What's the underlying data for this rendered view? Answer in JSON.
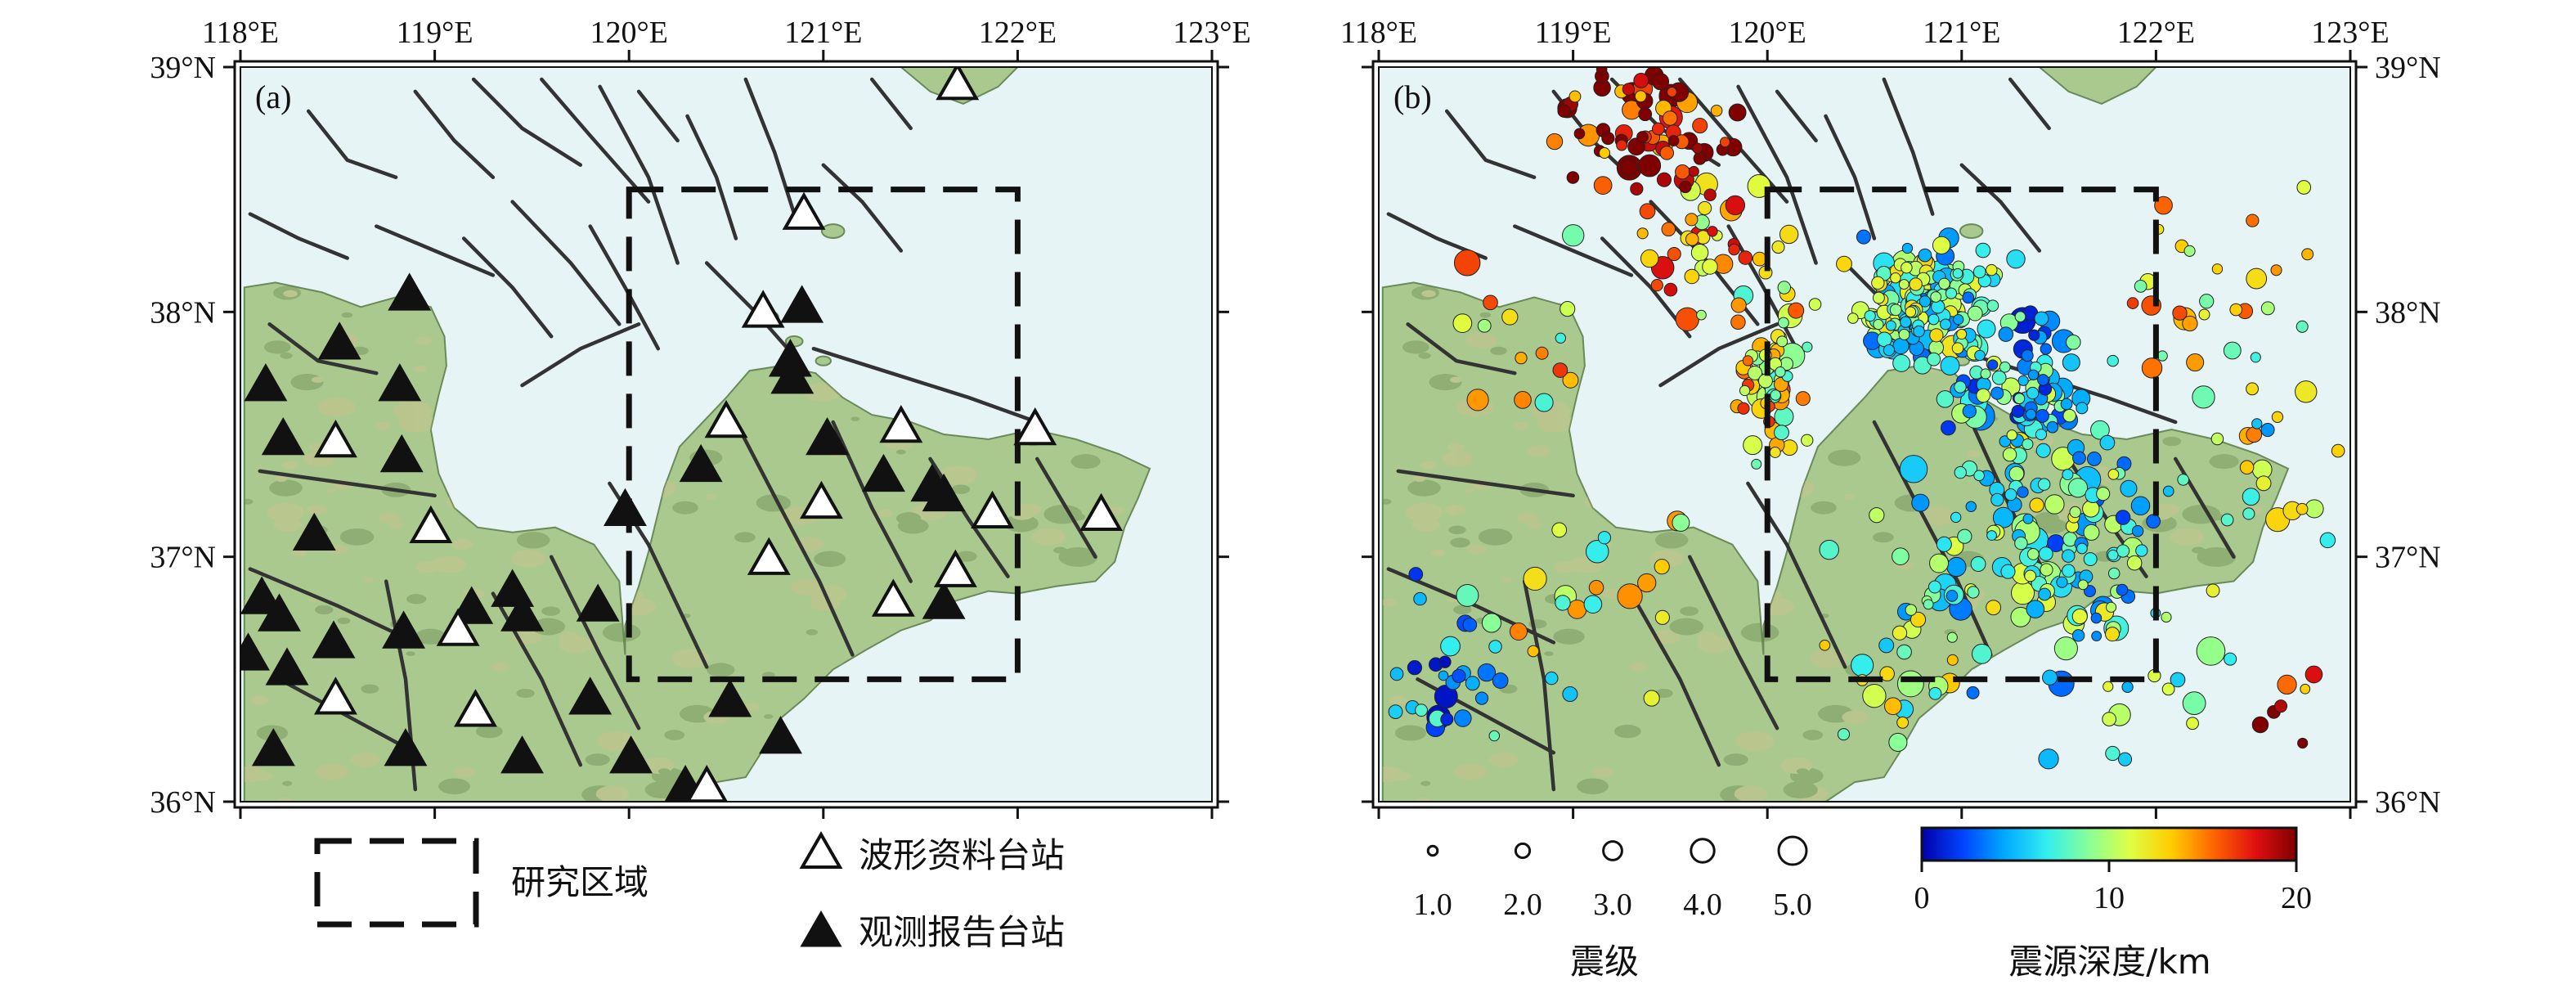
{
  "figure": {
    "panels": [
      {
        "label": "(a)"
      },
      {
        "label": "(b)"
      }
    ],
    "lon_ticks": [
      "118°E",
      "119°E",
      "120°E",
      "121°E",
      "122°E",
      "123°E"
    ],
    "lat_ticks": [
      "39°N",
      "38°N",
      "37°N",
      "36°N"
    ],
    "extent": {
      "lon": [
        118,
        123
      ],
      "lat": [
        36,
        39
      ]
    },
    "study_area": {
      "lon": [
        120,
        122
      ],
      "lat": [
        36.5,
        38.5
      ]
    },
    "legend_a": {
      "study_area_label": "研究区域",
      "waveform_station_label": "波形资料台站",
      "report_station_label": "观测报告台站"
    },
    "legend_b": {
      "magnitude_title": "震级",
      "magnitudes": [
        "1.0",
        "2.0",
        "3.0",
        "4.0",
        "5.0"
      ],
      "depth_title": "震源深度/km",
      "depth_ticks": [
        "0",
        "10",
        "20"
      ],
      "depth_colors": [
        "#0000aa",
        "#0044ff",
        "#00aaff",
        "#33eeee",
        "#88ff99",
        "#ddff44",
        "#ffcc00",
        "#ff6600",
        "#e01010",
        "#800000"
      ]
    },
    "colors": {
      "land": "#a9c98f",
      "sea": "#e6f4f6",
      "fault": "#333333"
    }
  },
  "stations": {
    "waveform": [
      [
        121.69,
        38.93
      ],
      [
        120.9,
        38.4
      ],
      [
        120.69,
        38.0
      ],
      [
        120.5,
        37.55
      ],
      [
        121.4,
        37.53
      ],
      [
        122.09,
        37.52
      ],
      [
        118.49,
        37.47
      ],
      [
        118.98,
        37.12
      ],
      [
        120.99,
        37.22
      ],
      [
        121.87,
        37.18
      ],
      [
        122.43,
        37.17
      ],
      [
        120.72,
        36.99
      ],
      [
        121.68,
        36.94
      ],
      [
        121.36,
        36.82
      ],
      [
        119.12,
        36.7
      ],
      [
        118.49,
        36.42
      ],
      [
        119.21,
        36.37
      ],
      [
        120.4,
        36.06
      ]
    ],
    "report": [
      [
        118.87,
        38.07
      ],
      [
        120.89,
        38.02
      ],
      [
        118.51,
        37.87
      ],
      [
        120.83,
        37.8
      ],
      [
        120.84,
        37.73
      ],
      [
        118.13,
        37.7
      ],
      [
        118.82,
        37.7
      ],
      [
        118.22,
        37.48
      ],
      [
        121.02,
        37.48
      ],
      [
        118.83,
        37.41
      ],
      [
        120.37,
        37.37
      ],
      [
        121.31,
        37.33
      ],
      [
        121.56,
        37.29
      ],
      [
        121.62,
        37.25
      ],
      [
        119.98,
        37.19
      ],
      [
        118.38,
        37.09
      ],
      [
        118.11,
        36.83
      ],
      [
        119.4,
        36.86
      ],
      [
        118.2,
        36.76
      ],
      [
        119.19,
        36.79
      ],
      [
        119.45,
        36.76
      ],
      [
        119.84,
        36.8
      ],
      [
        121.62,
        36.81
      ],
      [
        118.48,
        36.65
      ],
      [
        118.84,
        36.69
      ],
      [
        118.04,
        36.6
      ],
      [
        118.24,
        36.54
      ],
      [
        119.8,
        36.42
      ],
      [
        120.52,
        36.41
      ],
      [
        120.78,
        36.26
      ],
      [
        118.17,
        36.21
      ],
      [
        118.85,
        36.21
      ],
      [
        119.45,
        36.18
      ],
      [
        120.01,
        36.18
      ],
      [
        120.29,
        36.06
      ]
    ]
  },
  "earthquakes": []
}
